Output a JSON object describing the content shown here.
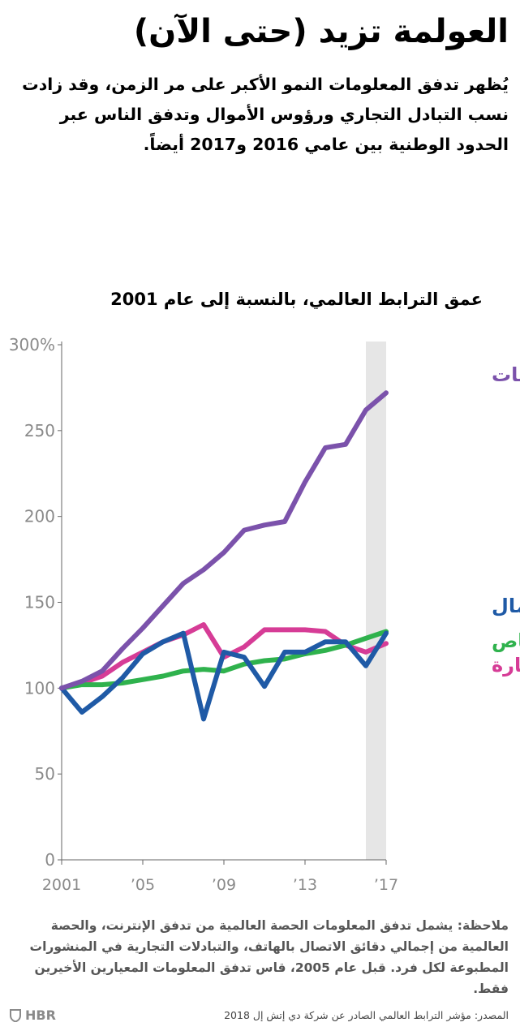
{
  "brand": {
    "name": "HBR",
    "icon": "hbr-shield-icon"
  },
  "title": "العولمة تزيد (حتى الآن)",
  "subtitle": "يُظهر تدفق المعلومات النمو الأكبر على مر الزمن، وقد زادت نسب التبادل التجاري ورؤوس الأموال وتدفق الناس عبر الحدود الوطنية بين عامي 2016 و2017 أيضاً.",
  "note": "ملاحظة: يشمل تدفق المعلومات الحصة العالمية من تدفق الإنترنت، والحصة العالمية من إجمالي دقائق الاتصال بالهاتف، والتبادلات التجارية في المنشورات المطبوعة لكل فرد. قبل عام 2005، قاس تدفق المعلومات المعيارين الأخيرين فقط.",
  "source": "المصدر: مؤشر الترابط العالمي الصادر عن شركة دي إتش إل 2018",
  "chart_data": {
    "type": "line",
    "title": "عمق الترابط العالمي، بالنسبة إلى عام 2001",
    "x": [
      2001,
      2002,
      2003,
      2004,
      2005,
      2006,
      2007,
      2008,
      2009,
      2010,
      2011,
      2012,
      2013,
      2014,
      2015,
      2016,
      2017
    ],
    "x_ticks": [
      {
        "value": 2001,
        "label": "2001"
      },
      {
        "value": 2005,
        "label": "’05"
      },
      {
        "value": 2009,
        "label": "’09"
      },
      {
        "value": 2013,
        "label": "’13"
      },
      {
        "value": 2017,
        "label": "’17"
      }
    ],
    "y_ticks": [
      {
        "value": 0,
        "label": "0"
      },
      {
        "value": 50,
        "label": "50"
      },
      {
        "value": 100,
        "label": "100"
      },
      {
        "value": 150,
        "label": "150"
      },
      {
        "value": 200,
        "label": "200"
      },
      {
        "value": 250,
        "label": "250"
      },
      {
        "value": 300,
        "label": "300%"
      }
    ],
    "ylim": [
      0,
      300
    ],
    "xlim": [
      2001,
      2017
    ],
    "highlight_range": [
      2016,
      2017
    ],
    "highlight_color": "#e6e6e6",
    "grid": false,
    "legend_placement": "inline-right",
    "series": [
      {
        "name": "المعلومات",
        "color": "#7b52ab",
        "values": [
          100,
          104,
          110,
          123,
          135,
          148,
          161,
          169,
          179,
          192,
          195,
          197,
          220,
          240,
          242,
          262,
          272
        ]
      },
      {
        "name": "رأس المال",
        "color": "#1f5aa6",
        "values": [
          100,
          86,
          95,
          106,
          120,
          127,
          132,
          82,
          121,
          118,
          101,
          121,
          121,
          127,
          127,
          113,
          132
        ]
      },
      {
        "name": "الأشخاص",
        "color": "#2fb24d",
        "values": [
          100,
          102,
          102,
          103,
          105,
          107,
          110,
          111,
          110,
          114,
          116,
          117,
          120,
          122,
          125,
          129,
          133
        ]
      },
      {
        "name": "التجارة",
        "color": "#d63c96",
        "values": [
          100,
          103,
          107,
          115,
          121,
          127,
          131,
          137,
          118,
          124,
          134,
          134,
          134,
          133,
          125,
          121,
          126
        ]
      }
    ]
  }
}
